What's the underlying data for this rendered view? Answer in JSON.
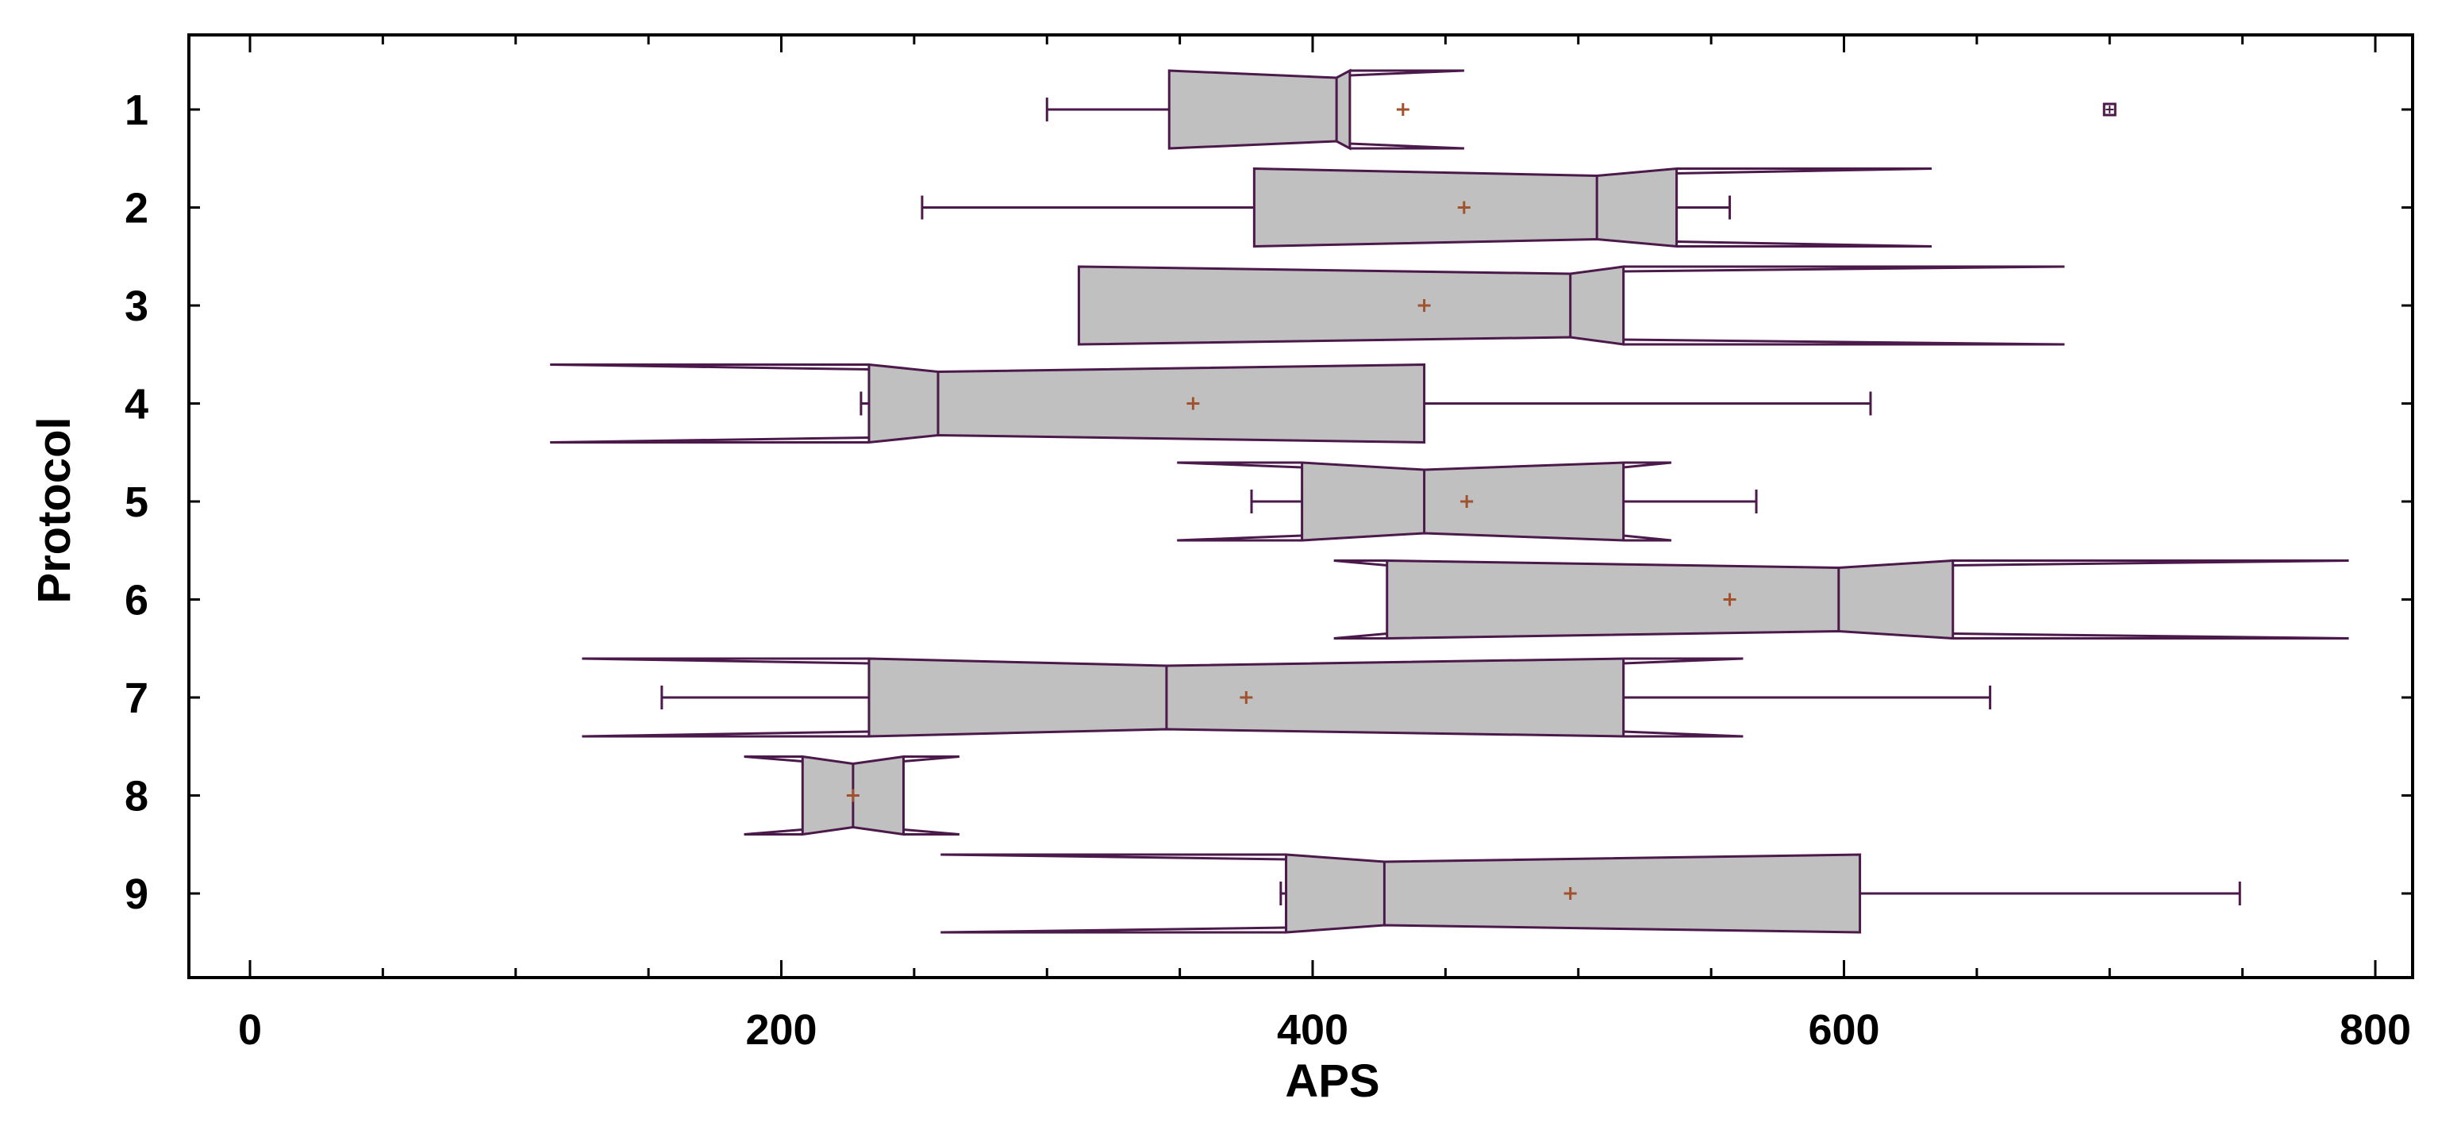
{
  "chart_data": {
    "type": "notched-box",
    "orientation": "horizontal",
    "xlabel": "APS",
    "ylabel": "Protocol",
    "xlim": [
      -60,
      820
    ],
    "x_ticks": [
      0,
      200,
      400,
      600,
      800
    ],
    "x_tick_labels": [
      "0",
      "200",
      "400",
      "600",
      "800"
    ],
    "categories": [
      "1",
      "2",
      "3",
      "4",
      "5",
      "6",
      "7",
      "8",
      "9"
    ],
    "box_fill": "#c0c0c0",
    "line_color": "#4b1a4b",
    "mean_color": "#a0522d",
    "outlier_color": "#4b1a4b",
    "boxes": [
      {
        "category": "1",
        "whisker_low": 300,
        "q1": 346,
        "median": 409,
        "q3": 414,
        "whisker_high": 414,
        "notch_low": 346,
        "notch_high": 457,
        "mean": 434,
        "outliers": [
          700
        ]
      },
      {
        "category": "2",
        "whisker_low": 253,
        "q1": 378,
        "median": 507,
        "q3": 537,
        "whisker_high": 557,
        "notch_low": 378,
        "notch_high": 633,
        "mean": 457
      },
      {
        "category": "3",
        "whisker_low": 312,
        "q1": 312,
        "median": 497,
        "q3": 517,
        "whisker_high": 517,
        "notch_low": 312,
        "notch_high": 683,
        "mean": 442
      },
      {
        "category": "4",
        "whisker_low": 230,
        "q1": 233,
        "median": 259,
        "q3": 442,
        "whisker_high": 610,
        "notch_low": 113,
        "notch_high": 442,
        "mean": 355
      },
      {
        "category": "5",
        "whisker_low": 377,
        "q1": 396,
        "median": 442,
        "q3": 517,
        "whisker_high": 567,
        "notch_low": 349,
        "notch_high": 535,
        "mean": 458
      },
      {
        "category": "6",
        "whisker_low": 428,
        "q1": 428,
        "median": 598,
        "q3": 641,
        "whisker_high": 641,
        "notch_low": 408,
        "notch_high": 790,
        "mean": 557
      },
      {
        "category": "7",
        "whisker_low": 155,
        "q1": 233,
        "median": 345,
        "q3": 517,
        "whisker_high": 655,
        "notch_low": 125,
        "notch_high": 562,
        "mean": 375
      },
      {
        "category": "8",
        "whisker_low": 208,
        "q1": 208,
        "median": 227,
        "q3": 246,
        "whisker_high": 246,
        "notch_low": 186,
        "notch_high": 267,
        "mean": 227
      },
      {
        "category": "9",
        "whisker_low": 388,
        "q1": 390,
        "median": 427,
        "q3": 606,
        "whisker_high": 749,
        "notch_low": 260,
        "notch_high": 606,
        "mean": 497
      }
    ]
  }
}
